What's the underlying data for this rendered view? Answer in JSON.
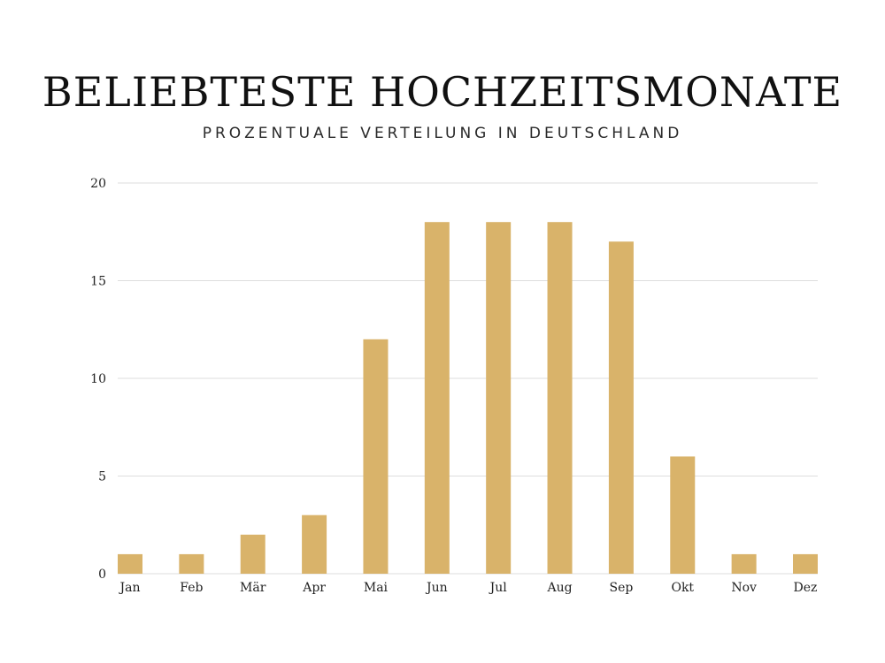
{
  "header": {
    "title": "BELIEBTESTE HOCHZEITSMONATE",
    "subtitle": "PROZENTUALE VERTEILUNG IN DEUTSCHLAND"
  },
  "chart_data": {
    "type": "bar",
    "categories": [
      "Jan",
      "Feb",
      "Mär",
      "Apr",
      "Mai",
      "Jun",
      "Jul",
      "Aug",
      "Sep",
      "Okt",
      "Nov",
      "Dez"
    ],
    "values": [
      1,
      1,
      2,
      3,
      12,
      18,
      18,
      18,
      17,
      6,
      1,
      1
    ],
    "ylim": [
      0,
      20
    ],
    "yticks": [
      0,
      5,
      10,
      15,
      20
    ],
    "grid": true,
    "bar_color": "#d9b36a",
    "grid_color": "#dddddd"
  }
}
